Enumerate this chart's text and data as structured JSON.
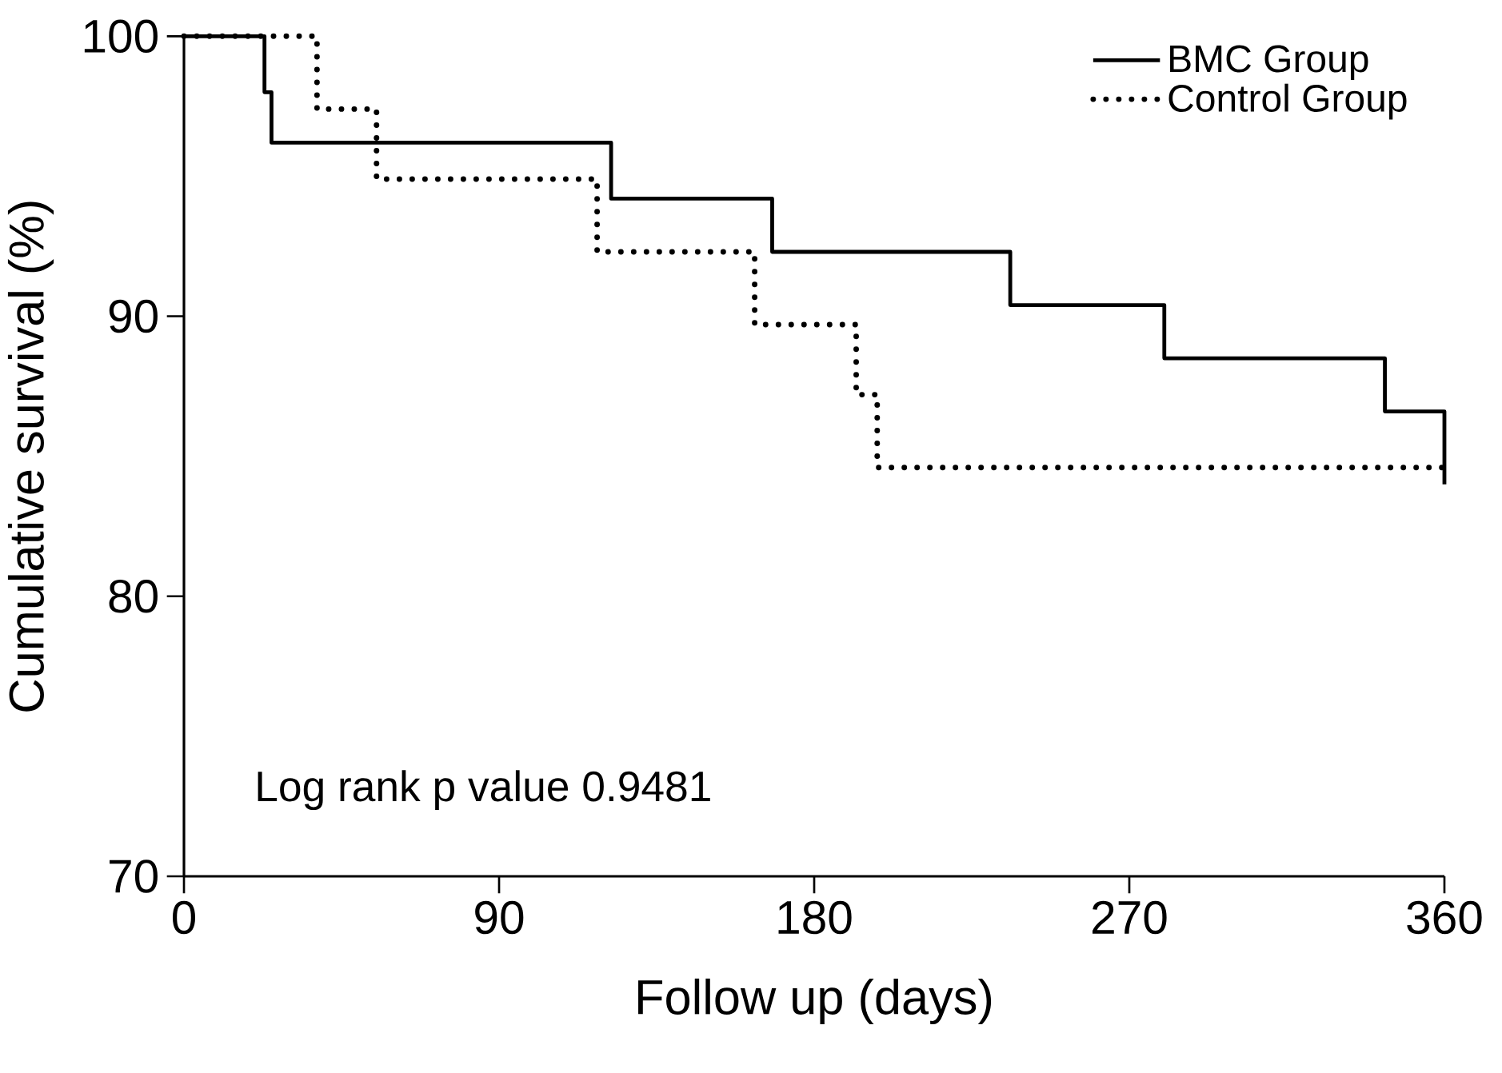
{
  "chart_data": {
    "type": "step",
    "xlabel": "Follow up (days)",
    "ylabel": "Cumulative survival (%)",
    "xlim": [
      0,
      360
    ],
    "xticks": [
      0,
      90,
      180,
      270,
      360
    ],
    "ylim": [
      70,
      100
    ],
    "yticks": [
      70,
      80,
      90,
      100
    ],
    "grid": false,
    "legend": "top right",
    "marker": "none",
    "annotations": [
      "Log rank p value 0.9481"
    ],
    "series": [
      {
        "name": "BMC Group",
        "color": "#000000",
        "line_style": "solid",
        "x": [
          0,
          23,
          25,
          122,
          168,
          236,
          280,
          343,
          360
        ],
        "values": [
          100,
          98.0,
          96.2,
          94.2,
          92.3,
          90.4,
          88.5,
          86.6,
          84.0
        ]
      },
      {
        "name": "Control Group",
        "color": "#000000",
        "line_style": "dotted",
        "x": [
          0,
          38,
          55,
          118,
          163,
          192,
          198,
          360
        ],
        "values": [
          100,
          97.4,
          94.9,
          92.3,
          89.7,
          87.2,
          84.6,
          84.6
        ]
      }
    ]
  }
}
